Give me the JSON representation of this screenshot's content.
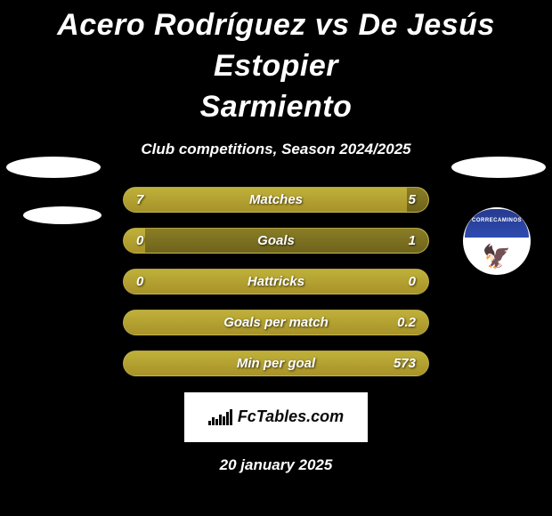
{
  "title_line1": "Acero Rodríguez vs De Jesús Estopier",
  "title_line2": "Sarmiento",
  "subtitle": "Club competitions, Season 2024/2025",
  "colors": {
    "background": "#000000",
    "bar_light_top": "#bfb03a",
    "bar_light_bottom": "#a79228",
    "bar_dark_top": "#8a7d26",
    "bar_dark_bottom": "#6e631c",
    "text": "#ffffff",
    "logo_bg": "#ffffff",
    "logo_text": "#0a0a0a",
    "badge_blue": "#263a8f"
  },
  "bars": [
    {
      "label": "Matches",
      "left": "7",
      "right": "5",
      "right_fill_pct": 7
    },
    {
      "label": "Goals",
      "left": "0",
      "right": "1",
      "right_fill_pct": 93
    },
    {
      "label": "Hattricks",
      "left": "0",
      "right": "0",
      "right_fill_pct": 0
    },
    {
      "label": "Goals per match",
      "left": "",
      "right": "0.2",
      "right_fill_pct": 0
    },
    {
      "label": "Min per goal",
      "left": "",
      "right": "573",
      "right_fill_pct": 0
    }
  ],
  "badge": {
    "text": "CORRECAMINOS",
    "emoji": "🦅"
  },
  "logo": {
    "text": "FcTables.com"
  },
  "date": "20 january 2025"
}
